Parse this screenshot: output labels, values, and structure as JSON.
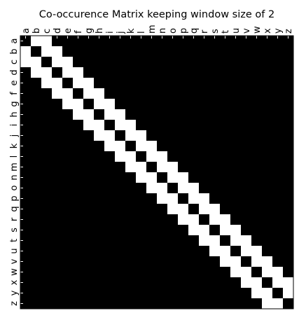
{
  "chart_data": {
    "type": "heatmap",
    "title": "Co-occurence Matrix keeping window size of 2",
    "xlabel": "",
    "ylabel": "",
    "x_tick_labels": [
      "a",
      "b",
      "c",
      "d",
      "e",
      "f",
      "g",
      "h",
      "i",
      "j",
      "k",
      "l",
      "m",
      "n",
      "o",
      "p",
      "q",
      "r",
      "s",
      "t",
      "u",
      "v",
      "w",
      "x",
      "y",
      "z"
    ],
    "y_tick_labels": [
      "a",
      "b",
      "c",
      "d",
      "e",
      "f",
      "g",
      "h",
      "i",
      "j",
      "k",
      "l",
      "m",
      "n",
      "o",
      "p",
      "q",
      "r",
      "s",
      "t",
      "u",
      "v",
      "w",
      "x",
      "y",
      "z"
    ],
    "x_axis_position": "top",
    "window_size": 2,
    "colormap": {
      "0": "#000000",
      "1": "#ffffff"
    },
    "grid": false,
    "matrix": [
      [
        0,
        1,
        1,
        0,
        0,
        0,
        0,
        0,
        0,
        0,
        0,
        0,
        0,
        0,
        0,
        0,
        0,
        0,
        0,
        0,
        0,
        0,
        0,
        0,
        0,
        0
      ],
      [
        1,
        0,
        1,
        1,
        0,
        0,
        0,
        0,
        0,
        0,
        0,
        0,
        0,
        0,
        0,
        0,
        0,
        0,
        0,
        0,
        0,
        0,
        0,
        0,
        0,
        0
      ],
      [
        1,
        1,
        0,
        1,
        1,
        0,
        0,
        0,
        0,
        0,
        0,
        0,
        0,
        0,
        0,
        0,
        0,
        0,
        0,
        0,
        0,
        0,
        0,
        0,
        0,
        0
      ],
      [
        0,
        1,
        1,
        0,
        1,
        1,
        0,
        0,
        0,
        0,
        0,
        0,
        0,
        0,
        0,
        0,
        0,
        0,
        0,
        0,
        0,
        0,
        0,
        0,
        0,
        0
      ],
      [
        0,
        0,
        1,
        1,
        0,
        1,
        1,
        0,
        0,
        0,
        0,
        0,
        0,
        0,
        0,
        0,
        0,
        0,
        0,
        0,
        0,
        0,
        0,
        0,
        0,
        0
      ],
      [
        0,
        0,
        0,
        1,
        1,
        0,
        1,
        1,
        0,
        0,
        0,
        0,
        0,
        0,
        0,
        0,
        0,
        0,
        0,
        0,
        0,
        0,
        0,
        0,
        0,
        0
      ],
      [
        0,
        0,
        0,
        0,
        1,
        1,
        0,
        1,
        1,
        0,
        0,
        0,
        0,
        0,
        0,
        0,
        0,
        0,
        0,
        0,
        0,
        0,
        0,
        0,
        0,
        0
      ],
      [
        0,
        0,
        0,
        0,
        0,
        1,
        1,
        0,
        1,
        1,
        0,
        0,
        0,
        0,
        0,
        0,
        0,
        0,
        0,
        0,
        0,
        0,
        0,
        0,
        0,
        0
      ],
      [
        0,
        0,
        0,
        0,
        0,
        0,
        1,
        1,
        0,
        1,
        1,
        0,
        0,
        0,
        0,
        0,
        0,
        0,
        0,
        0,
        0,
        0,
        0,
        0,
        0,
        0
      ],
      [
        0,
        0,
        0,
        0,
        0,
        0,
        0,
        1,
        1,
        0,
        1,
        1,
        0,
        0,
        0,
        0,
        0,
        0,
        0,
        0,
        0,
        0,
        0,
        0,
        0,
        0
      ],
      [
        0,
        0,
        0,
        0,
        0,
        0,
        0,
        0,
        1,
        1,
        0,
        1,
        1,
        0,
        0,
        0,
        0,
        0,
        0,
        0,
        0,
        0,
        0,
        0,
        0,
        0
      ],
      [
        0,
        0,
        0,
        0,
        0,
        0,
        0,
        0,
        0,
        1,
        1,
        0,
        1,
        1,
        0,
        0,
        0,
        0,
        0,
        0,
        0,
        0,
        0,
        0,
        0,
        0
      ],
      [
        0,
        0,
        0,
        0,
        0,
        0,
        0,
        0,
        0,
        0,
        1,
        1,
        0,
        1,
        1,
        0,
        0,
        0,
        0,
        0,
        0,
        0,
        0,
        0,
        0,
        0
      ],
      [
        0,
        0,
        0,
        0,
        0,
        0,
        0,
        0,
        0,
        0,
        0,
        1,
        1,
        0,
        1,
        1,
        0,
        0,
        0,
        0,
        0,
        0,
        0,
        0,
        0,
        0
      ],
      [
        0,
        0,
        0,
        0,
        0,
        0,
        0,
        0,
        0,
        0,
        0,
        0,
        1,
        1,
        0,
        1,
        1,
        0,
        0,
        0,
        0,
        0,
        0,
        0,
        0,
        0
      ],
      [
        0,
        0,
        0,
        0,
        0,
        0,
        0,
        0,
        0,
        0,
        0,
        0,
        0,
        1,
        1,
        0,
        1,
        1,
        0,
        0,
        0,
        0,
        0,
        0,
        0,
        0
      ],
      [
        0,
        0,
        0,
        0,
        0,
        0,
        0,
        0,
        0,
        0,
        0,
        0,
        0,
        0,
        1,
        1,
        0,
        1,
        1,
        0,
        0,
        0,
        0,
        0,
        0,
        0
      ],
      [
        0,
        0,
        0,
        0,
        0,
        0,
        0,
        0,
        0,
        0,
        0,
        0,
        0,
        0,
        0,
        1,
        1,
        0,
        1,
        1,
        0,
        0,
        0,
        0,
        0,
        0
      ],
      [
        0,
        0,
        0,
        0,
        0,
        0,
        0,
        0,
        0,
        0,
        0,
        0,
        0,
        0,
        0,
        0,
        1,
        1,
        0,
        1,
        1,
        0,
        0,
        0,
        0,
        0
      ],
      [
        0,
        0,
        0,
        0,
        0,
        0,
        0,
        0,
        0,
        0,
        0,
        0,
        0,
        0,
        0,
        0,
        0,
        1,
        1,
        0,
        1,
        1,
        0,
        0,
        0,
        0
      ],
      [
        0,
        0,
        0,
        0,
        0,
        0,
        0,
        0,
        0,
        0,
        0,
        0,
        0,
        0,
        0,
        0,
        0,
        0,
        1,
        1,
        0,
        1,
        1,
        0,
        0,
        0
      ],
      [
        0,
        0,
        0,
        0,
        0,
        0,
        0,
        0,
        0,
        0,
        0,
        0,
        0,
        0,
        0,
        0,
        0,
        0,
        0,
        1,
        1,
        0,
        1,
        1,
        0,
        0
      ],
      [
        0,
        0,
        0,
        0,
        0,
        0,
        0,
        0,
        0,
        0,
        0,
        0,
        0,
        0,
        0,
        0,
        0,
        0,
        0,
        0,
        1,
        1,
        0,
        1,
        1,
        0
      ],
      [
        0,
        0,
        0,
        0,
        0,
        0,
        0,
        0,
        0,
        0,
        0,
        0,
        0,
        0,
        0,
        0,
        0,
        0,
        0,
        0,
        0,
        1,
        1,
        0,
        1,
        1
      ],
      [
        0,
        0,
        0,
        0,
        0,
        0,
        0,
        0,
        0,
        0,
        0,
        0,
        0,
        0,
        0,
        0,
        0,
        0,
        0,
        0,
        0,
        0,
        1,
        1,
        0,
        1
      ],
      [
        0,
        0,
        0,
        0,
        0,
        0,
        0,
        0,
        0,
        0,
        0,
        0,
        0,
        0,
        0,
        0,
        0,
        0,
        0,
        0,
        0,
        0,
        0,
        1,
        1,
        0
      ]
    ]
  }
}
